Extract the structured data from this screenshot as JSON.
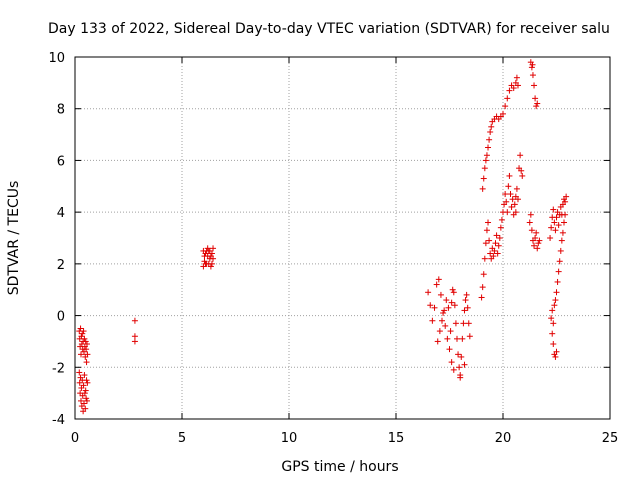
{
  "chart_data": {
    "type": "scatter",
    "title": "Day 133 of 2022, Sidereal Day-to-day VTEC variation (SDTVAR) for receiver salu",
    "xlabel": "GPS time / hours",
    "ylabel": "SDTVAR / TECUs",
    "xlim": [
      0,
      25
    ],
    "ylim": [
      -4,
      10
    ],
    "xticks": [
      0,
      5,
      10,
      15,
      20,
      25
    ],
    "yticks": [
      -4,
      -2,
      0,
      2,
      4,
      6,
      8,
      10
    ],
    "grid": true,
    "marker": "+",
    "color": "#e00000",
    "series": [
      {
        "name": "SDTVAR",
        "points": [
          [
            0.2,
            -0.6
          ],
          [
            0.22,
            -0.9
          ],
          [
            0.24,
            -1.2
          ],
          [
            0.26,
            -0.5
          ],
          [
            0.28,
            -1.5
          ],
          [
            0.3,
            -0.8
          ],
          [
            0.32,
            -1.1
          ],
          [
            0.34,
            -0.7
          ],
          [
            0.36,
            -1.3
          ],
          [
            0.38,
            -1.0
          ],
          [
            0.4,
            -0.6
          ],
          [
            0.42,
            -1.4
          ],
          [
            0.44,
            -0.9
          ],
          [
            0.46,
            -1.2
          ],
          [
            0.48,
            -1.6
          ],
          [
            0.5,
            -1.0
          ],
          [
            0.52,
            -1.3
          ],
          [
            0.54,
            -1.8
          ],
          [
            0.56,
            -1.1
          ],
          [
            0.58,
            -1.5
          ],
          [
            0.2,
            -2.2
          ],
          [
            0.22,
            -2.6
          ],
          [
            0.24,
            -3.0
          ],
          [
            0.26,
            -2.4
          ],
          [
            0.28,
            -3.3
          ],
          [
            0.3,
            -2.8
          ],
          [
            0.32,
            -3.5
          ],
          [
            0.34,
            -2.5
          ],
          [
            0.36,
            -3.1
          ],
          [
            0.38,
            -3.7
          ],
          [
            0.4,
            -2.7
          ],
          [
            0.42,
            -3.4
          ],
          [
            0.44,
            -2.3
          ],
          [
            0.46,
            -3.0
          ],
          [
            0.48,
            -3.6
          ],
          [
            0.5,
            -2.9
          ],
          [
            0.52,
            -3.2
          ],
          [
            0.54,
            -2.5
          ],
          [
            0.56,
            -3.3
          ],
          [
            0.58,
            -2.6
          ],
          [
            2.8,
            -0.2
          ],
          [
            2.8,
            -0.8
          ],
          [
            2.8,
            -1.0
          ],
          [
            6.0,
            1.9
          ],
          [
            6.05,
            2.1
          ],
          [
            6.1,
            2.4
          ],
          [
            6.15,
            2.0
          ],
          [
            6.2,
            2.3
          ],
          [
            6.25,
            2.5
          ],
          [
            6.3,
            2.2
          ],
          [
            6.35,
            1.9
          ],
          [
            6.4,
            2.4
          ],
          [
            6.45,
            2.6
          ],
          [
            6.0,
            2.5
          ],
          [
            6.1,
            2.0
          ],
          [
            6.2,
            2.6
          ],
          [
            6.3,
            2.5
          ],
          [
            6.4,
            2.0
          ],
          [
            6.05,
            2.3
          ],
          [
            6.15,
            2.5
          ],
          [
            6.25,
            2.0
          ],
          [
            6.35,
            2.3
          ],
          [
            6.45,
            2.2
          ],
          [
            16.5,
            0.9
          ],
          [
            16.6,
            0.4
          ],
          [
            16.7,
            -0.2
          ],
          [
            16.8,
            0.3
          ],
          [
            16.9,
            1.2
          ],
          [
            17.0,
            1.4
          ],
          [
            17.1,
            0.8
          ],
          [
            17.2,
            0.1
          ],
          [
            17.3,
            -0.4
          ],
          [
            17.4,
            -0.9
          ],
          [
            17.5,
            -1.3
          ],
          [
            17.6,
            -1.8
          ],
          [
            17.7,
            -2.1
          ],
          [
            17.55,
            -0.6
          ],
          [
            17.45,
            0.3
          ],
          [
            17.35,
            0.6
          ],
          [
            17.25,
            0.2
          ],
          [
            17.15,
            -0.2
          ],
          [
            17.05,
            -0.6
          ],
          [
            16.95,
            -1.0
          ],
          [
            17.6,
            0.5
          ],
          [
            17.65,
            1.0
          ],
          [
            17.7,
            0.9
          ],
          [
            17.75,
            0.4
          ],
          [
            17.8,
            -0.3
          ],
          [
            17.85,
            -0.9
          ],
          [
            17.9,
            -1.5
          ],
          [
            17.95,
            -2.0
          ],
          [
            18.0,
            -2.3
          ],
          [
            18.05,
            -1.6
          ],
          [
            18.1,
            -0.9
          ],
          [
            18.15,
            -0.3
          ],
          [
            18.2,
            0.2
          ],
          [
            18.25,
            0.6
          ],
          [
            18.3,
            0.8
          ],
          [
            18.35,
            0.3
          ],
          [
            18.4,
            -0.3
          ],
          [
            18.45,
            -0.8
          ],
          [
            18.0,
            -2.4
          ],
          [
            18.2,
            -1.9
          ],
          [
            19.0,
            0.7
          ],
          [
            19.05,
            1.1
          ],
          [
            19.1,
            1.6
          ],
          [
            19.15,
            2.2
          ],
          [
            19.2,
            2.8
          ],
          [
            19.25,
            3.3
          ],
          [
            19.3,
            3.6
          ],
          [
            19.35,
            2.9
          ],
          [
            19.4,
            2.4
          ],
          [
            19.45,
            2.2
          ],
          [
            19.5,
            2.6
          ],
          [
            19.55,
            2.3
          ],
          [
            19.6,
            2.5
          ],
          [
            19.65,
            2.8
          ],
          [
            19.7,
            3.1
          ],
          [
            19.75,
            2.4
          ],
          [
            19.8,
            2.7
          ],
          [
            19.85,
            3.0
          ],
          [
            19.9,
            3.4
          ],
          [
            19.95,
            3.7
          ],
          [
            20.0,
            4.0
          ],
          [
            20.05,
            4.3
          ],
          [
            20.1,
            4.7
          ],
          [
            20.15,
            4.4
          ],
          [
            20.2,
            4.0
          ],
          [
            20.25,
            5.0
          ],
          [
            20.3,
            5.4
          ],
          [
            20.35,
            4.7
          ],
          [
            20.4,
            4.2
          ],
          [
            20.45,
            4.5
          ],
          [
            20.5,
            3.9
          ],
          [
            20.55,
            4.3
          ],
          [
            20.6,
            4.6
          ],
          [
            20.65,
            4.9
          ],
          [
            20.7,
            4.5
          ],
          [
            20.75,
            5.7
          ],
          [
            20.8,
            6.2
          ],
          [
            20.85,
            5.6
          ],
          [
            20.9,
            5.4
          ],
          [
            20.6,
            4.0
          ],
          [
            19.05,
            4.9
          ],
          [
            19.1,
            5.3
          ],
          [
            19.15,
            5.7
          ],
          [
            19.2,
            6.0
          ],
          [
            19.25,
            6.2
          ],
          [
            19.3,
            6.5
          ],
          [
            19.35,
            6.8
          ],
          [
            19.4,
            7.1
          ],
          [
            19.45,
            7.3
          ],
          [
            19.5,
            7.5
          ],
          [
            19.6,
            7.6
          ],
          [
            19.7,
            7.7
          ],
          [
            19.8,
            7.6
          ],
          [
            19.9,
            7.7
          ],
          [
            20.0,
            7.8
          ],
          [
            20.1,
            8.1
          ],
          [
            20.2,
            8.4
          ],
          [
            20.3,
            8.7
          ],
          [
            20.4,
            8.9
          ],
          [
            20.5,
            8.8
          ],
          [
            20.6,
            9.0
          ],
          [
            20.65,
            9.2
          ],
          [
            20.7,
            8.9
          ],
          [
            21.3,
            9.8
          ],
          [
            21.35,
            9.6
          ],
          [
            21.4,
            9.3
          ],
          [
            21.45,
            8.9
          ],
          [
            21.5,
            8.4
          ],
          [
            21.55,
            8.1
          ],
          [
            21.6,
            8.2
          ],
          [
            21.38,
            9.7
          ],
          [
            21.25,
            3.6
          ],
          [
            21.3,
            3.9
          ],
          [
            21.35,
            3.3
          ],
          [
            21.4,
            2.9
          ],
          [
            21.45,
            2.7
          ],
          [
            21.5,
            3.0
          ],
          [
            21.55,
            3.2
          ],
          [
            21.6,
            2.6
          ],
          [
            21.65,
            2.8
          ],
          [
            21.7,
            2.9
          ],
          [
            22.2,
            3.0
          ],
          [
            22.25,
            3.4
          ],
          [
            22.3,
            3.8
          ],
          [
            22.35,
            4.1
          ],
          [
            22.4,
            3.6
          ],
          [
            22.45,
            3.3
          ],
          [
            22.5,
            3.8
          ],
          [
            22.55,
            4.0
          ],
          [
            22.6,
            3.5
          ],
          [
            22.65,
            3.9
          ],
          [
            22.7,
            4.2
          ],
          [
            22.75,
            3.9
          ],
          [
            22.8,
            4.3
          ],
          [
            22.85,
            4.5
          ],
          [
            22.9,
            4.4
          ],
          [
            22.95,
            4.6
          ],
          [
            22.25,
            -0.1
          ],
          [
            22.3,
            0.2
          ],
          [
            22.35,
            -0.3
          ],
          [
            22.4,
            0.4
          ],
          [
            22.45,
            0.6
          ],
          [
            22.5,
            0.9
          ],
          [
            22.55,
            1.3
          ],
          [
            22.6,
            1.7
          ],
          [
            22.65,
            2.1
          ],
          [
            22.7,
            2.5
          ],
          [
            22.75,
            2.9
          ],
          [
            22.8,
            3.2
          ],
          [
            22.85,
            3.6
          ],
          [
            22.9,
            3.9
          ],
          [
            22.3,
            -0.7
          ],
          [
            22.35,
            -1.1
          ],
          [
            22.4,
            -1.5
          ],
          [
            22.45,
            -1.6
          ],
          [
            22.5,
            -1.4
          ]
        ]
      }
    ]
  }
}
